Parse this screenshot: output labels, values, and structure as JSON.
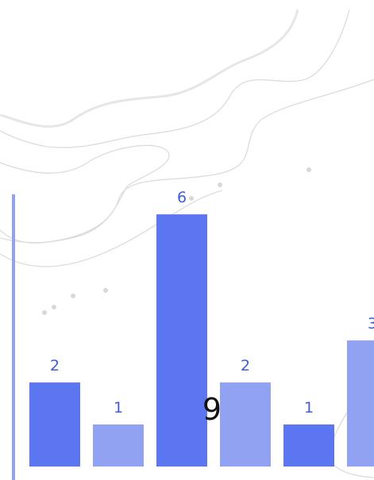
{
  "chart_data": {
    "type": "bar",
    "values": [
      2,
      1,
      6,
      2,
      1,
      3
    ],
    "colors": [
      "#5b76f0",
      "#91a2f2",
      "#5b76f0",
      "#91a2f2",
      "#5b76f0",
      "#91a2f2"
    ],
    "ylim": [
      0,
      11.1
    ],
    "overlay_text": "9"
  }
}
